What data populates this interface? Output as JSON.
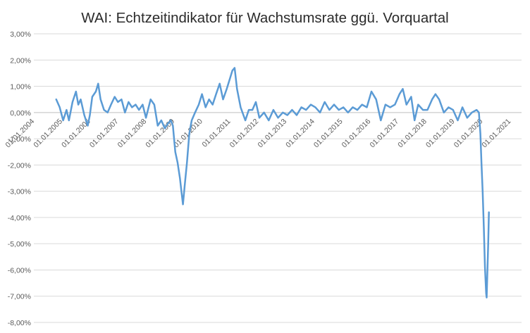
{
  "chart_data": {
    "type": "line",
    "title": "WAI: Echtzeitindikator für Wachstumsrate ggü. Vorquartal",
    "xlabel": "",
    "ylabel": "",
    "ylim": [
      -0.08,
      0.03
    ],
    "yticks": [
      "3,00%",
      "2,00%",
      "1,00%",
      "0,00%",
      "-1,00%",
      "-2,00%",
      "-3,00%",
      "-4,00%",
      "-5,00%",
      "-6,00%",
      "-7,00%",
      "-8,00%"
    ],
    "xlim": [
      "2004-01-01",
      "2021-01-01"
    ],
    "xticks": [
      "01.01.2004",
      "01.01.2005",
      "01.01.2006",
      "01.01.2007",
      "01.01.2008",
      "01.01.2009",
      "01.01.2010",
      "01.01.2011",
      "01.01.2012",
      "01.01.2013",
      "01.01.2014",
      "01.01.2015",
      "01.01.2016",
      "01.01.2017",
      "01.01.2018",
      "01.01.2019",
      "01.01.2020",
      "01.01.2021"
    ],
    "grid": true,
    "legend": "none",
    "line_color": "#5b9bd5",
    "series": [
      {
        "points": [
          [
            "2005-01-01",
            0.5
          ],
          [
            "2005-02-15",
            0.2
          ],
          [
            "2005-04-01",
            -0.3
          ],
          [
            "2005-05-15",
            0.1
          ],
          [
            "2005-06-15",
            -0.3
          ],
          [
            "2005-08-01",
            0.4
          ],
          [
            "2005-09-15",
            0.8
          ],
          [
            "2005-10-15",
            0.3
          ],
          [
            "2005-11-15",
            0.5
          ],
          [
            "2006-01-01",
            -0.1
          ],
          [
            "2006-02-15",
            -0.5
          ],
          [
            "2006-03-15",
            -0.1
          ],
          [
            "2006-04-15",
            0.6
          ],
          [
            "2006-06-01",
            0.8
          ],
          [
            "2006-07-01",
            1.1
          ],
          [
            "2006-08-01",
            0.5
          ],
          [
            "2006-09-15",
            0.1
          ],
          [
            "2006-11-01",
            0.0
          ],
          [
            "2006-12-15",
            0.3
          ],
          [
            "2007-02-01",
            0.6
          ],
          [
            "2007-03-15",
            0.4
          ],
          [
            "2007-05-01",
            0.5
          ],
          [
            "2007-06-15",
            0.0
          ],
          [
            "2007-08-01",
            0.4
          ],
          [
            "2007-09-15",
            0.2
          ],
          [
            "2007-11-01",
            0.3
          ],
          [
            "2007-12-15",
            0.1
          ],
          [
            "2008-02-01",
            0.3
          ],
          [
            "2008-03-15",
            -0.2
          ],
          [
            "2008-05-15",
            0.5
          ],
          [
            "2008-07-01",
            0.3
          ],
          [
            "2008-08-15",
            -0.5
          ],
          [
            "2008-10-01",
            -0.3
          ],
          [
            "2008-11-15",
            -0.6
          ],
          [
            "2009-01-01",
            -0.4
          ],
          [
            "2009-02-01",
            -0.3
          ],
          [
            "2009-03-01",
            -0.5
          ],
          [
            "2009-04-01",
            -1.5
          ],
          [
            "2009-05-01",
            -1.9
          ],
          [
            "2009-06-01",
            -2.5
          ],
          [
            "2009-06-20",
            -3.0
          ],
          [
            "2009-07-10",
            -3.5
          ],
          [
            "2009-08-01",
            -2.8
          ],
          [
            "2009-09-01",
            -1.9
          ],
          [
            "2009-10-01",
            -0.8
          ],
          [
            "2009-11-01",
            -0.3
          ],
          [
            "2009-12-15",
            0.0
          ],
          [
            "2010-02-01",
            0.3
          ],
          [
            "2010-03-15",
            0.7
          ],
          [
            "2010-05-01",
            0.2
          ],
          [
            "2010-06-15",
            0.5
          ],
          [
            "2010-08-01",
            0.3
          ],
          [
            "2010-09-15",
            0.7
          ],
          [
            "2010-11-01",
            1.1
          ],
          [
            "2010-12-15",
            0.5
          ],
          [
            "2011-02-01",
            0.9
          ],
          [
            "2011-03-15",
            1.3
          ],
          [
            "2011-04-15",
            1.6
          ],
          [
            "2011-05-15",
            1.7
          ],
          [
            "2011-06-15",
            0.9
          ],
          [
            "2011-08-01",
            0.2
          ],
          [
            "2011-10-01",
            -0.3
          ],
          [
            "2011-11-15",
            0.1
          ],
          [
            "2012-01-01",
            0.1
          ],
          [
            "2012-02-15",
            0.4
          ],
          [
            "2012-04-01",
            -0.2
          ],
          [
            "2012-06-01",
            0.0
          ],
          [
            "2012-08-01",
            -0.3
          ],
          [
            "2012-10-01",
            0.1
          ],
          [
            "2012-12-01",
            -0.2
          ],
          [
            "2013-02-01",
            0.0
          ],
          [
            "2013-04-01",
            -0.1
          ],
          [
            "2013-06-01",
            0.1
          ],
          [
            "2013-08-01",
            -0.1
          ],
          [
            "2013-10-01",
            0.2
          ],
          [
            "2013-12-01",
            0.1
          ],
          [
            "2014-02-01",
            0.3
          ],
          [
            "2014-04-01",
            0.2
          ],
          [
            "2014-06-01",
            0.0
          ],
          [
            "2014-08-01",
            0.4
          ],
          [
            "2014-10-01",
            0.1
          ],
          [
            "2014-12-01",
            0.3
          ],
          [
            "2015-02-01",
            0.1
          ],
          [
            "2015-04-01",
            0.2
          ],
          [
            "2015-06-01",
            0.0
          ],
          [
            "2015-08-01",
            0.2
          ],
          [
            "2015-10-01",
            0.1
          ],
          [
            "2015-12-01",
            0.3
          ],
          [
            "2016-02-01",
            0.2
          ],
          [
            "2016-04-01",
            0.8
          ],
          [
            "2016-06-01",
            0.5
          ],
          [
            "2016-08-01",
            -0.3
          ],
          [
            "2016-10-01",
            0.3
          ],
          [
            "2016-12-01",
            0.2
          ],
          [
            "2017-02-01",
            0.3
          ],
          [
            "2017-04-01",
            0.7
          ],
          [
            "2017-05-15",
            0.9
          ],
          [
            "2017-07-01",
            0.3
          ],
          [
            "2017-09-01",
            0.6
          ],
          [
            "2017-10-15",
            -0.3
          ],
          [
            "2017-12-01",
            0.3
          ],
          [
            "2018-02-01",
            0.1
          ],
          [
            "2018-04-01",
            0.1
          ],
          [
            "2018-06-01",
            0.5
          ],
          [
            "2018-07-15",
            0.7
          ],
          [
            "2018-09-01",
            0.5
          ],
          [
            "2018-11-01",
            0.0
          ],
          [
            "2019-01-01",
            0.2
          ],
          [
            "2019-03-01",
            0.1
          ],
          [
            "2019-05-01",
            -0.3
          ],
          [
            "2019-07-01",
            0.2
          ],
          [
            "2019-09-01",
            -0.2
          ],
          [
            "2019-11-01",
            0.0
          ],
          [
            "2020-01-01",
            0.1
          ],
          [
            "2020-02-01",
            0.0
          ],
          [
            "2020-02-20",
            -0.8
          ],
          [
            "2020-03-05",
            -1.9
          ],
          [
            "2020-03-20",
            -3.0
          ],
          [
            "2020-04-05",
            -4.4
          ],
          [
            "2020-04-20",
            -5.9
          ],
          [
            "2020-05-05",
            -6.9
          ],
          [
            "2020-05-12",
            -7.05
          ],
          [
            "2020-05-20",
            -6.2
          ],
          [
            "2020-06-01",
            -5.0
          ],
          [
            "2020-06-10",
            -3.8
          ]
        ]
      }
    ]
  }
}
